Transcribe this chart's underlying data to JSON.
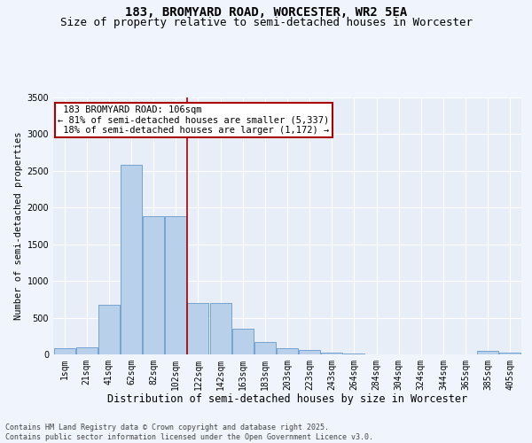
{
  "title1": "183, BROMYARD ROAD, WORCESTER, WR2 5EA",
  "title2": "Size of property relative to semi-detached houses in Worcester",
  "xlabel": "Distribution of semi-detached houses by size in Worcester",
  "ylabel": "Number of semi-detached properties",
  "footnote": "Contains HM Land Registry data © Crown copyright and database right 2025.\nContains public sector information licensed under the Open Government Licence v3.0.",
  "bar_labels": [
    "1sqm",
    "21sqm",
    "41sqm",
    "62sqm",
    "82sqm",
    "102sqm",
    "122sqm",
    "142sqm",
    "163sqm",
    "183sqm",
    "203sqm",
    "223sqm",
    "243sqm",
    "264sqm",
    "284sqm",
    "304sqm",
    "324sqm",
    "344sqm",
    "365sqm",
    "385sqm",
    "405sqm"
  ],
  "bar_values": [
    80,
    100,
    670,
    2580,
    1880,
    1880,
    700,
    700,
    350,
    170,
    90,
    65,
    30,
    10,
    5,
    0,
    0,
    0,
    0,
    50,
    30
  ],
  "bar_color": "#b8d0ea",
  "bar_edge_color": "#6699cc",
  "vline_x_index": 5.5,
  "vline_color": "#aa0000",
  "box_edge_color": "#aa0000",
  "property_label": "183 BROMYARD ROAD: 106sqm",
  "smaller_pct": 81,
  "smaller_count": 5337,
  "larger_pct": 18,
  "larger_count": 1172,
  "ylim": [
    0,
    3500
  ],
  "yticks": [
    0,
    500,
    1000,
    1500,
    2000,
    2500,
    3000,
    3500
  ],
  "bg_color": "#e8eef8",
  "grid_color": "#ffffff",
  "fig_bg_color": "#f0f4fc",
  "title1_fontsize": 10,
  "title2_fontsize": 9,
  "annotation_fontsize": 7.5,
  "tick_fontsize": 7,
  "xlabel_fontsize": 8.5,
  "ylabel_fontsize": 7.5
}
